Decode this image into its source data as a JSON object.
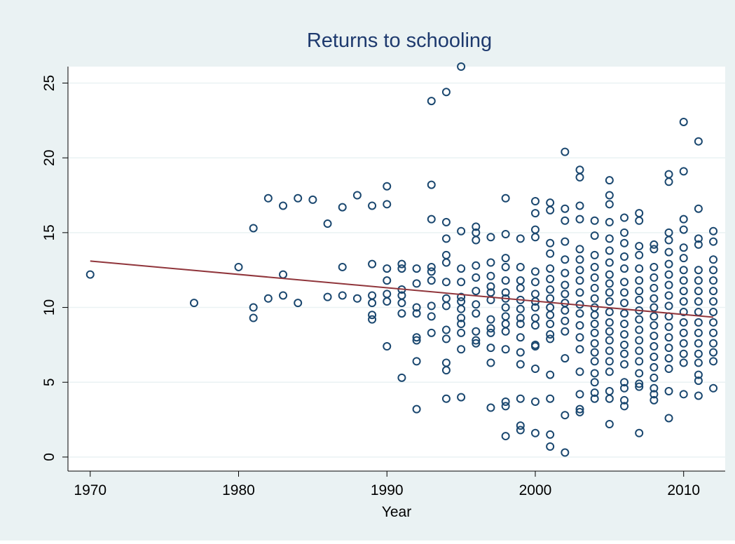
{
  "chart_data": {
    "type": "scatter",
    "title": "Returns to schooling",
    "x_label": "Year",
    "x": [
      1970,
      1977,
      1980,
      1981,
      1981,
      1981,
      1982,
      1982,
      1983,
      1983,
      1983,
      1984,
      1984,
      1985,
      1986,
      1986,
      1987,
      1987,
      1987,
      1988,
      1988,
      1989,
      1989,
      1989,
      1989,
      1989,
      1989,
      1990,
      1990,
      1990,
      1990,
      1990,
      1990,
      1990,
      1991,
      1991,
      1991,
      1991,
      1991,
      1991,
      1991,
      1992,
      1992,
      1992,
      1992,
      1992,
      1992,
      1992,
      1992,
      1993,
      1993,
      1993,
      1993,
      1993,
      1993,
      1993,
      1993,
      1993,
      1994,
      1994,
      1994,
      1994,
      1994,
      1994,
      1994,
      1994,
      1994,
      1994,
      1994,
      1994,
      1994,
      1995,
      1995,
      1995,
      1995,
      1995,
      1995,
      1995,
      1995,
      1995,
      1995,
      1995,
      1995,
      1996,
      1996,
      1996,
      1996,
      1996,
      1996,
      1996,
      1996,
      1996,
      1996,
      1996,
      1997,
      1997,
      1997,
      1997,
      1997,
      1997,
      1997,
      1997,
      1997,
      1997,
      1997,
      1997,
      1998,
      1998,
      1998,
      1998,
      1998,
      1998,
      1998,
      1998,
      1998,
      1998,
      1998,
      1998,
      1998,
      1998,
      1998,
      1999,
      1999,
      1999,
      1999,
      1999,
      1999,
      1999,
      1999,
      1999,
      1999,
      1999,
      1999,
      1999,
      1999,
      2000,
      2000,
      2000,
      2000,
      2000,
      2000,
      2000,
      2000,
      2000,
      2000,
      2000,
      2000,
      2000,
      2000,
      2000,
      2000,
      2001,
      2001,
      2001,
      2001,
      2001,
      2001,
      2001,
      2001,
      2001,
      2001,
      2001,
      2001,
      2001,
      2001,
      2001,
      2001,
      2001,
      2002,
      2002,
      2002,
      2002,
      2002,
      2002,
      2002,
      2002,
      2002,
      2002,
      2002,
      2002,
      2002,
      2002,
      2002,
      2003,
      2003,
      2003,
      2003,
      2003,
      2003,
      2003,
      2003,
      2003,
      2003,
      2003,
      2003,
      2003,
      2003,
      2003,
      2003,
      2003,
      2003,
      2004,
      2004,
      2004,
      2004,
      2004,
      2004,
      2004,
      2004,
      2004,
      2004,
      2004,
      2004,
      2004,
      2004,
      2004,
      2004,
      2004,
      2004,
      2005,
      2005,
      2005,
      2005,
      2005,
      2005,
      2005,
      2005,
      2005,
      2005,
      2005,
      2005,
      2005,
      2005,
      2005,
      2005,
      2005,
      2005,
      2005,
      2005,
      2005,
      2006,
      2006,
      2006,
      2006,
      2006,
      2006,
      2006,
      2006,
      2006,
      2006,
      2006,
      2006,
      2006,
      2006,
      2006,
      2006,
      2006,
      2006,
      2007,
      2007,
      2007,
      2007,
      2007,
      2007,
      2007,
      2007,
      2007,
      2007,
      2007,
      2007,
      2007,
      2007,
      2007,
      2007,
      2007,
      2007,
      2008,
      2008,
      2008,
      2008,
      2008,
      2008,
      2008,
      2008,
      2008,
      2008,
      2008,
      2008,
      2008,
      2008,
      2008,
      2008,
      2008,
      2009,
      2009,
      2009,
      2009,
      2009,
      2009,
      2009,
      2009,
      2009,
      2009,
      2009,
      2009,
      2009,
      2009,
      2009,
      2009,
      2009,
      2009,
      2010,
      2010,
      2010,
      2010,
      2010,
      2010,
      2010,
      2010,
      2010,
      2010,
      2010,
      2010,
      2010,
      2010,
      2010,
      2010,
      2010,
      2011,
      2011,
      2011,
      2011,
      2011,
      2011,
      2011,
      2011,
      2011,
      2011,
      2011,
      2011,
      2011,
      2011,
      2011,
      2011,
      2011,
      2012,
      2012,
      2012,
      2012,
      2012,
      2012,
      2012,
      2012,
      2012,
      2012,
      2012,
      2012,
      2012,
      2012
    ],
    "values": [
      12.2,
      10.3,
      12.7,
      15.3,
      10.0,
      9.3,
      17.3,
      10.6,
      16.8,
      12.2,
      10.8,
      17.3,
      10.3,
      17.2,
      15.6,
      10.7,
      16.7,
      12.7,
      10.8,
      17.5,
      10.6,
      16.8,
      12.9,
      10.8,
      10.3,
      9.5,
      9.2,
      18.1,
      16.9,
      12.6,
      11.8,
      10.9,
      10.4,
      7.4,
      12.9,
      12.6,
      11.2,
      10.8,
      10.3,
      9.6,
      5.3,
      12.6,
      11.6,
      10.0,
      9.6,
      8.0,
      7.8,
      6.4,
      3.2,
      23.8,
      18.2,
      15.9,
      12.7,
      12.4,
      11.8,
      10.1,
      9.4,
      8.3,
      24.4,
      15.7,
      14.6,
      13.5,
      13.0,
      11.7,
      10.6,
      10.1,
      8.5,
      7.9,
      6.3,
      5.8,
      3.9,
      26.1,
      15.1,
      12.6,
      11.7,
      10.7,
      10.4,
      9.9,
      9.3,
      8.9,
      8.3,
      7.2,
      4.0,
      15.4,
      15.0,
      14.5,
      12.8,
      12.0,
      11.1,
      10.2,
      9.6,
      8.4,
      7.8,
      7.6,
      14.7,
      13.0,
      12.1,
      11.4,
      11.0,
      10.5,
      9.2,
      8.6,
      8.3,
      7.3,
      6.3,
      3.3,
      17.3,
      14.9,
      13.3,
      12.7,
      11.8,
      11.0,
      10.6,
      10.0,
      9.4,
      8.9,
      8.4,
      7.2,
      3.7,
      3.4,
      1.4,
      14.6,
      12.7,
      11.8,
      11.3,
      10.5,
      9.9,
      9.3,
      8.9,
      8.0,
      7.0,
      6.2,
      3.9,
      2.1,
      1.8,
      17.1,
      16.3,
      15.2,
      14.7,
      12.4,
      11.7,
      10.9,
      10.4,
      10.0,
      9.3,
      8.8,
      7.5,
      7.4,
      5.9,
      3.7,
      1.6,
      17.0,
      16.5,
      14.3,
      13.6,
      12.6,
      11.9,
      11.2,
      10.6,
      10.0,
      9.5,
      8.9,
      8.2,
      7.9,
      5.5,
      3.9,
      1.5,
      0.7,
      20.4,
      16.6,
      15.8,
      14.4,
      13.2,
      12.3,
      11.5,
      10.9,
      10.3,
      9.8,
      9.1,
      8.4,
      6.6,
      2.8,
      0.3,
      19.2,
      18.7,
      16.8,
      15.9,
      13.9,
      13.2,
      12.5,
      11.8,
      11.0,
      10.2,
      9.6,
      8.8,
      8.0,
      7.2,
      5.7,
      4.2,
      3.2,
      3.0,
      15.8,
      14.8,
      13.5,
      12.7,
      12.0,
      11.3,
      10.6,
      10.0,
      9.5,
      8.9,
      8.3,
      7.6,
      7.0,
      6.4,
      5.6,
      5.0,
      4.3,
      3.9,
      18.5,
      17.5,
      16.9,
      15.7,
      14.6,
      13.8,
      13.0,
      12.2,
      11.6,
      11.0,
      10.4,
      9.7,
      9.0,
      8.4,
      7.8,
      7.1,
      6.4,
      5.7,
      4.4,
      3.9,
      2.2,
      16.0,
      15.0,
      14.3,
      13.4,
      12.6,
      11.7,
      11.0,
      10.3,
      9.6,
      8.9,
      8.2,
      7.5,
      6.9,
      6.2,
      5.0,
      4.6,
      3.8,
      3.4,
      16.3,
      15.8,
      14.1,
      13.5,
      12.6,
      11.8,
      11.1,
      10.5,
      9.8,
      9.2,
      8.5,
      7.8,
      7.1,
      6.4,
      5.6,
      4.9,
      4.7,
      1.6,
      14.2,
      13.9,
      12.7,
      12.0,
      11.3,
      10.6,
      10.0,
      9.4,
      8.8,
      8.1,
      7.4,
      6.7,
      6.0,
      5.3,
      4.6,
      4.2,
      3.8,
      18.9,
      18.4,
      15.0,
      14.5,
      13.7,
      12.9,
      12.2,
      11.5,
      10.8,
      10.1,
      9.4,
      8.7,
      8.0,
      7.3,
      6.6,
      5.9,
      4.4,
      2.6,
      22.4,
      19.1,
      15.9,
      15.2,
      14.0,
      13.3,
      12.5,
      11.8,
      11.1,
      10.4,
      9.7,
      9.0,
      8.3,
      7.6,
      6.9,
      6.3,
      4.2,
      21.1,
      16.6,
      14.6,
      14.2,
      12.5,
      11.8,
      11.1,
      10.4,
      9.7,
      9.0,
      8.3,
      7.6,
      6.9,
      6.3,
      5.5,
      5.1,
      4.1,
      15.1,
      14.4,
      13.2,
      12.5,
      11.8,
      11.1,
      10.4,
      9.7,
      9.0,
      8.3,
      7.6,
      7.0,
      6.4,
      4.6
    ],
    "color": "#1a476f",
    "fit_line": {
      "x": [
        1970,
        2012
      ],
      "values": [
        13.1,
        9.35
      ],
      "color": "#90353b"
    },
    "xlim": [
      1968.5,
      2012.8
    ],
    "ylim": [
      -0.94,
      26.1
    ],
    "xticks": [
      1970,
      1980,
      1990,
      2000,
      2010
    ],
    "yticks": [
      0,
      5,
      10,
      15,
      20,
      25
    ],
    "grid": true
  }
}
